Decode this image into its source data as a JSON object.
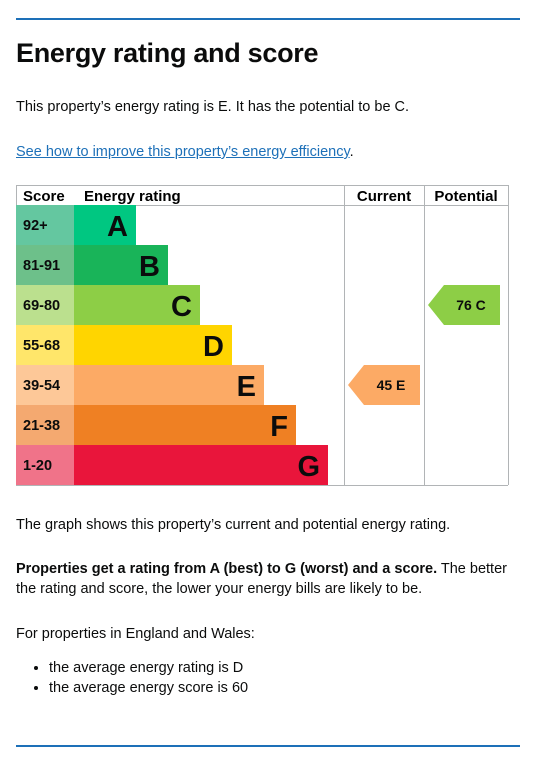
{
  "heading": "Energy rating and score",
  "intro": "This property’s energy rating is E. It has the potential to be C.",
  "improve_link": "See how to improve this property’s energy efficiency",
  "improve_suffix": ".",
  "chart": {
    "headers": {
      "score": "Score",
      "rating": "Energy rating",
      "current": "Current",
      "potential": "Potential"
    },
    "bands": [
      {
        "score": "92+",
        "letter": "A",
        "color": "#00c781",
        "light": "#64c7a0"
      },
      {
        "score": "81-91",
        "letter": "B",
        "color": "#19b459",
        "light": "#6dc08a"
      },
      {
        "score": "69-80",
        "letter": "C",
        "color": "#8dce46",
        "light": "#bbe08e"
      },
      {
        "score": "55-68",
        "letter": "D",
        "color": "#ffd500",
        "light": "#ffe66a"
      },
      {
        "score": "39-54",
        "letter": "E",
        "color": "#fcaa65",
        "light": "#fdc898"
      },
      {
        "score": "21-38",
        "letter": "F",
        "color": "#ef8023",
        "light": "#f4a970"
      },
      {
        "score": "1-20",
        "letter": "G",
        "color": "#e9153b",
        "light": "#f07389"
      }
    ],
    "current": {
      "score": 45,
      "letter": "E",
      "label": "45 E"
    },
    "potential": {
      "score": 76,
      "letter": "C",
      "label": "76 C"
    }
  },
  "graph_desc": "The graph shows this property’s current and potential energy rating.",
  "ratings_bold": "Properties get a rating from A (best) to G (worst) and a score.",
  "ratings_rest": " The better the rating and score, the lower your energy bills are likely to be.",
  "ew_intro": "For properties in England and Wales:",
  "averages": [
    "the average energy rating is D",
    "the average energy score is 60"
  ]
}
